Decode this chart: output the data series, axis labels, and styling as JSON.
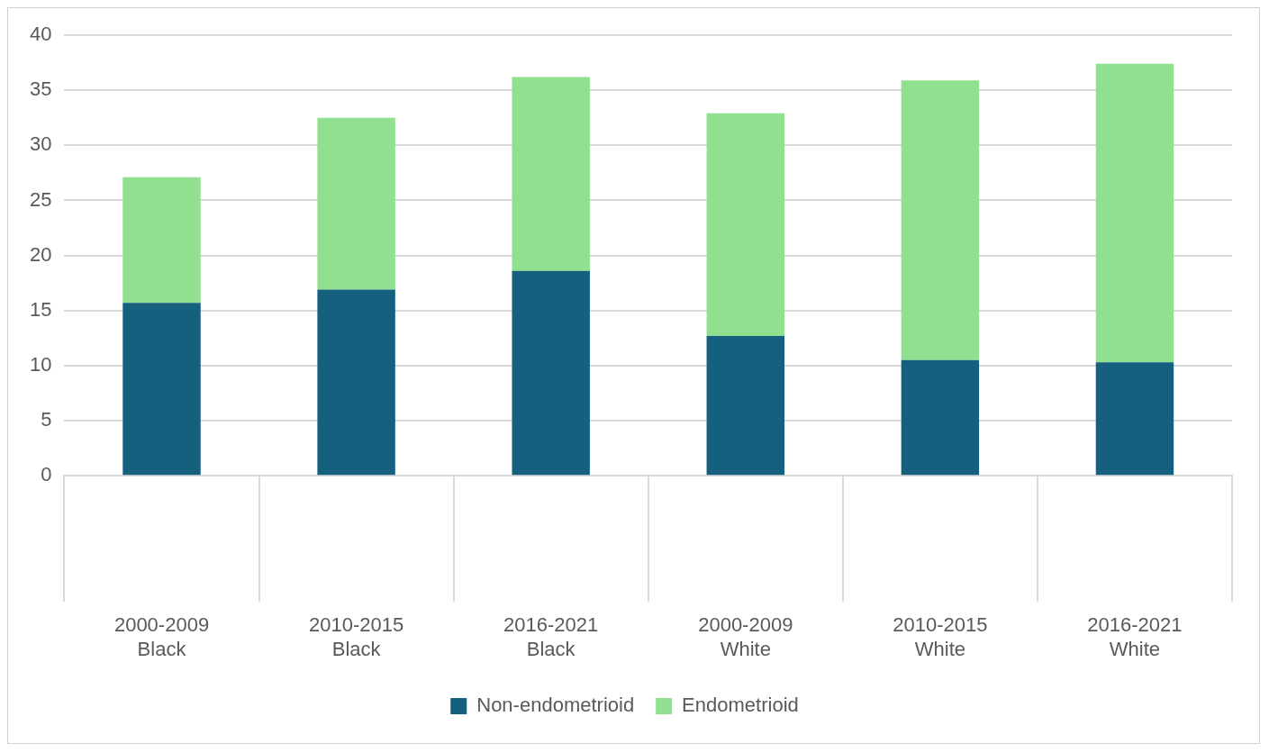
{
  "chart_data": {
    "type": "bar",
    "stacked": true,
    "categories": [
      "2000-2009\nBlack",
      "2010-2015\nBlack",
      "2016-2021\nBlack",
      "2000-2009\nWhite",
      "2010-2015\nWhite",
      "2016-2021\nWhite"
    ],
    "series": [
      {
        "name": "Non-endometrioid",
        "color": "#155f7f",
        "values": [
          15.7,
          16.9,
          18.6,
          12.7,
          10.5,
          10.3
        ]
      },
      {
        "name": "Endometrioid",
        "color": "#90e090",
        "values": [
          11.4,
          15.6,
          17.6,
          20.2,
          25.4,
          27.1
        ]
      }
    ],
    "ylim": [
      0,
      40
    ],
    "yticks": [
      0,
      5,
      10,
      15,
      20,
      25,
      30,
      35,
      40
    ],
    "grid": "y",
    "legend": "bottom"
  }
}
